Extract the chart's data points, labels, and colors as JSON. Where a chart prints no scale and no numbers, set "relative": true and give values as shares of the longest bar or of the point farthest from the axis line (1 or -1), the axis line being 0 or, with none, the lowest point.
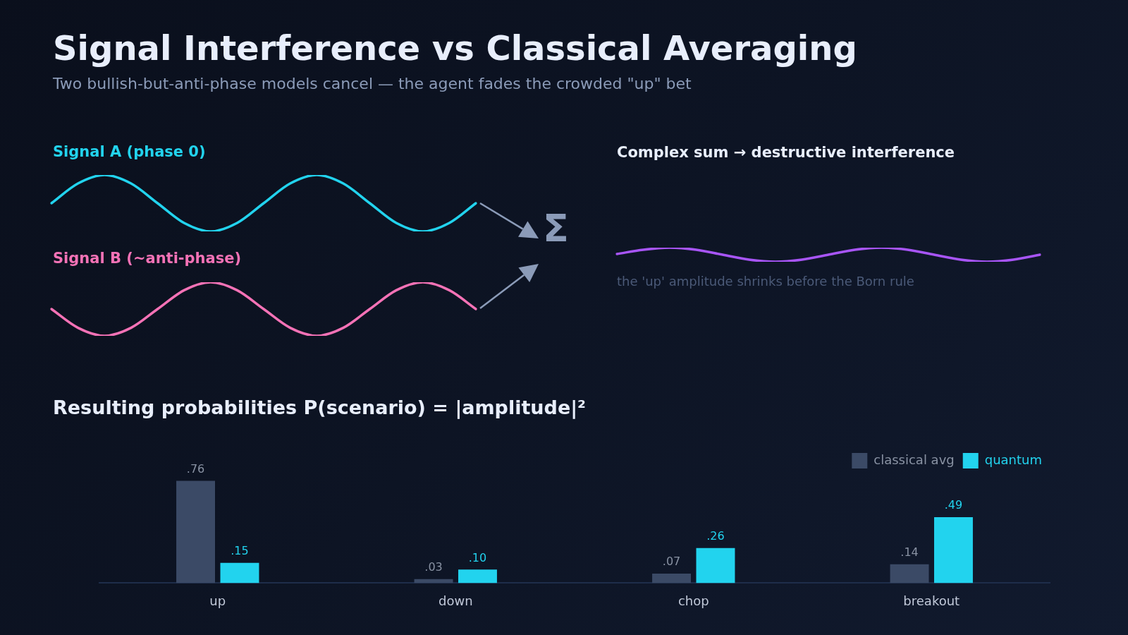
{
  "chart_data": [
    {
      "type": "line",
      "title": "Signal Interference vs Classical Averaging",
      "subtitle": "Two bullish-but-anti-phase models cancel — the agent fades the crowded \"up\" bet",
      "relative": true,
      "tick_labels": false,
      "categories": [
        null,
        null,
        null,
        null,
        null,
        null,
        null,
        null,
        null,
        null,
        null,
        null,
        null,
        null,
        null,
        null,
        null
      ],
      "series": [
        {
          "name": "Signal A (phase 0)",
          "color": "#22d3ee",
          "values": [
            0.5,
            0.85,
            1,
            0.85,
            0.5,
            0.15,
            0,
            0.15,
            0.5,
            0.85,
            1,
            0.85,
            0.5,
            0.15,
            0,
            0.15,
            0.5
          ]
        }
      ]
    },
    {
      "type": "line",
      "relative": true,
      "tick_labels": false,
      "categories": [
        null,
        null,
        null,
        null,
        null,
        null,
        null,
        null,
        null,
        null,
        null,
        null,
        null,
        null,
        null,
        null,
        null
      ],
      "series": [
        {
          "name": "Signal B (~anti-phase)",
          "color": "#f472b6",
          "values": [
            0.5,
            0.15,
            0,
            0.15,
            0.5,
            0.85,
            1,
            0.85,
            0.5,
            0.15,
            0,
            0.15,
            0.5,
            0.85,
            1,
            0.85,
            0.5
          ]
        }
      ]
    },
    {
      "type": "line",
      "title": "Complex sum → destructive interference",
      "annotations": [
        "Σ",
        "the 'up' amplitude shrinks before the Born rule"
      ],
      "relative": true,
      "tick_labels": false,
      "categories": [
        null,
        null,
        null,
        null,
        null,
        null,
        null,
        null,
        null,
        null,
        null,
        null,
        null,
        null,
        null,
        null,
        null
      ],
      "series": [
        {
          "color": "#a855f7",
          "values": [
            0.55,
            0.85,
            1,
            0.85,
            0.5,
            0.15,
            0,
            0.15,
            0.5,
            0.85,
            1,
            0.85,
            0.5,
            0.15,
            0,
            0.15,
            0.5
          ]
        }
      ]
    },
    {
      "type": "bar",
      "title": "Resulting probabilities P(scenario) = |amplitude|²",
      "categories": [
        "up",
        "down",
        "chop",
        "breakout"
      ],
      "legend": "top right",
      "tick_labels": "x",
      "series": [
        {
          "name": "classical avg",
          "color": "#3b4a66",
          "values": [
            0.76,
            0.03,
            0.07,
            0.14
          ],
          "value_labels": [
            ".76",
            ".03",
            ".07",
            ".14"
          ]
        },
        {
          "name": "quantum",
          "color": "#22d3ee",
          "values": [
            0.15,
            0.1,
            0.26,
            0.49
          ],
          "value_labels": [
            ".15",
            ".10",
            ".26",
            ".49"
          ]
        }
      ]
    }
  ]
}
